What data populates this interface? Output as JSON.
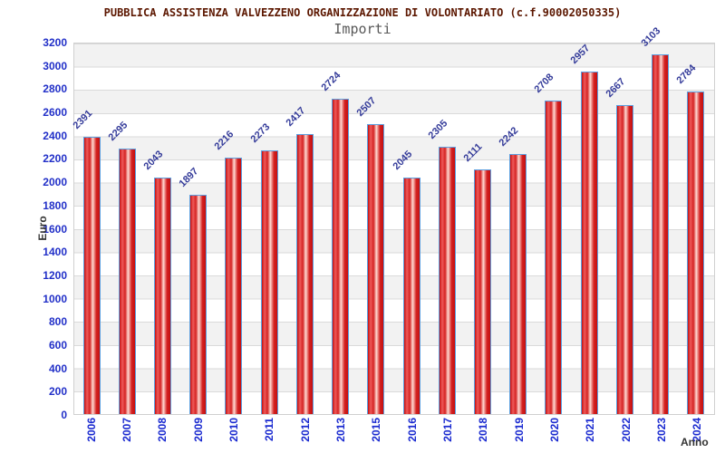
{
  "chart_data": {
    "type": "bar",
    "title": "PUBBLICA ASSISTENZA VALVEZZENO ORGANIZZAZIONE DI VOLONTARIATO (c.f.90002050335)",
    "subtitle": "Importi",
    "xlabel": "Anno",
    "ylabel": "Euro",
    "categories": [
      "2006",
      "2007",
      "2008",
      "2009",
      "2010",
      "2011",
      "2012",
      "2013",
      "2015",
      "2016",
      "2017",
      "2018",
      "2019",
      "2020",
      "2021",
      "2022",
      "2023",
      "2024"
    ],
    "values": [
      2391,
      2295,
      2043,
      1897,
      2216,
      2273,
      2417,
      2724,
      2507,
      2045,
      2305,
      2111,
      2242,
      2708,
      2957,
      2667,
      3103,
      2784
    ],
    "ylim": [
      0,
      3200
    ],
    "ytick_step": 200,
    "grid": true,
    "legend_position": "none",
    "colors": {
      "bar_fill": "#d42222",
      "bar_highlight": "#ffd9d2",
      "bar_border": "#5b9fe0",
      "value_label": "#333a99",
      "axis_tick_label": "#2230c8",
      "title": "#5c1700",
      "subtitle": "#595959",
      "axis_title": "#333333",
      "band_gray": "#f2f2f2",
      "gridline": "#dadada"
    }
  }
}
